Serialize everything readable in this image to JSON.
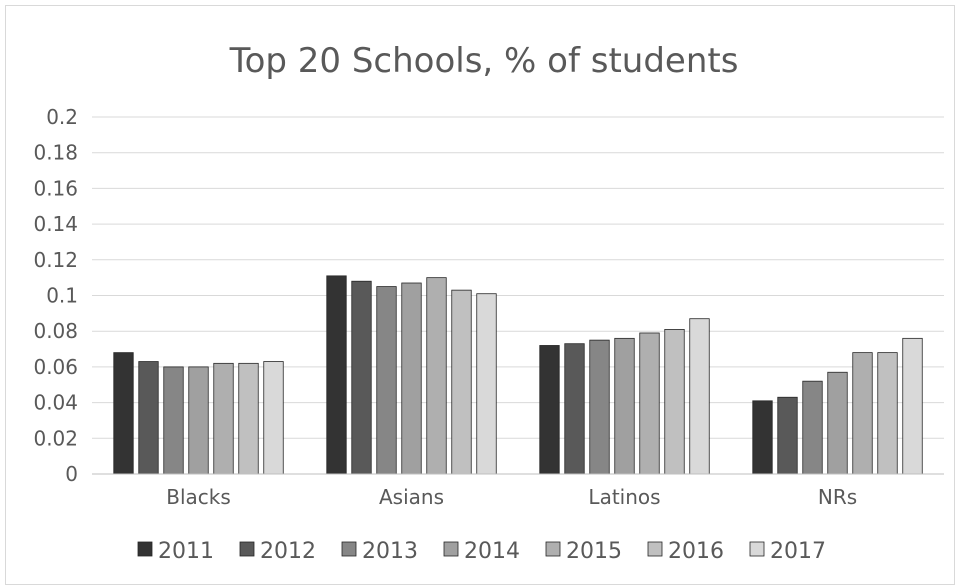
{
  "chart_data": {
    "type": "bar",
    "title": "Top 20 Schools, % of students",
    "xlabel": "",
    "ylabel": "",
    "ylim": [
      0,
      0.2
    ],
    "yticks": [
      "0",
      "0.02",
      "0.04",
      "0.06",
      "0.08",
      "0.1",
      "0.12",
      "0.14",
      "0.16",
      "0.18",
      "0.2"
    ],
    "grid": true,
    "legend_position": "bottom",
    "categories": [
      "Blacks",
      "Asians",
      "Latinos",
      "NRs"
    ],
    "series": [
      {
        "name": "2011",
        "color": "#333333",
        "values": [
          0.068,
          0.111,
          0.072,
          0.041
        ]
      },
      {
        "name": "2012",
        "color": "#595959",
        "values": [
          0.063,
          0.108,
          0.073,
          0.043
        ]
      },
      {
        "name": "2013",
        "color": "#868686",
        "values": [
          0.06,
          0.105,
          0.075,
          0.052
        ]
      },
      {
        "name": "2014",
        "color": "#a0a0a0",
        "values": [
          0.06,
          0.107,
          0.076,
          0.057
        ]
      },
      {
        "name": "2015",
        "color": "#afafaf",
        "values": [
          0.062,
          0.11,
          0.079,
          0.068
        ]
      },
      {
        "name": "2016",
        "color": "#c0c0c0",
        "values": [
          0.062,
          0.103,
          0.081,
          0.068
        ]
      },
      {
        "name": "2017",
        "color": "#d9d9d9",
        "values": [
          0.063,
          0.101,
          0.087,
          0.076
        ]
      }
    ]
  }
}
